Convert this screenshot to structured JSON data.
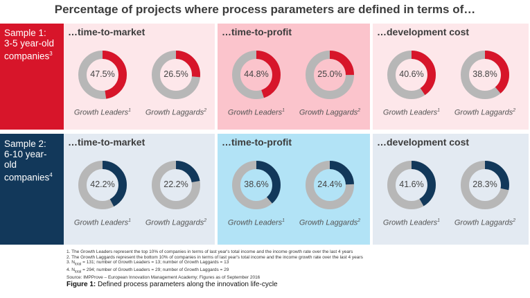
{
  "title": "Percentage of projects where process parameters are defined in terms of…",
  "colors": {
    "sample1_band": "#d7152a",
    "sample2_band": "#12385a",
    "sample1_panel_light": "#fde7ea",
    "sample1_panel_highlight": "#fbc4cc",
    "sample2_panel_light": "#e3eaf2",
    "sample2_panel_highlight": "#b2e3f6",
    "donut_track": "#b7b7b7"
  },
  "chart_data": [
    {
      "type": "donut",
      "sample": {
        "label": "Sample 1:",
        "sublabel_1": "3-5 year-old",
        "sublabel_2": "companies",
        "footnote_mark": "3"
      },
      "panels": [
        {
          "title": "…time-to-market",
          "categories": [
            "Growth Leaders",
            "Growth Laggards"
          ],
          "footnote_marks": [
            "1",
            "2"
          ],
          "values": [
            47.5,
            26.5
          ],
          "value_labels": [
            "47.5%",
            "26.5%"
          ]
        },
        {
          "title": "…time-to-profit",
          "categories": [
            "Growth Leaders",
            "Growth Laggards"
          ],
          "footnote_marks": [
            "1",
            "2"
          ],
          "values": [
            44.8,
            25.0
          ],
          "value_labels": [
            "44.8%",
            "25.0%"
          ]
        },
        {
          "title": "…development cost",
          "categories": [
            "Growth Leaders",
            "Growth Laggards"
          ],
          "footnote_marks": [
            "1",
            "2"
          ],
          "values": [
            40.6,
            38.8
          ],
          "value_labels": [
            "40.6%",
            "38.8%"
          ]
        }
      ]
    },
    {
      "type": "donut",
      "sample": {
        "label": "Sample 2:",
        "sublabel_1": "6-10 year-",
        "sublabel_2": "old",
        "sublabel_3": "companies",
        "footnote_mark": "4"
      },
      "panels": [
        {
          "title": "…time-to-market",
          "categories": [
            "Growth Leaders",
            "Growth Laggards"
          ],
          "footnote_marks": [
            "1",
            "2"
          ],
          "values": [
            42.2,
            22.2
          ],
          "value_labels": [
            "42.2%",
            "22.2%"
          ]
        },
        {
          "title": "…time-to-profit",
          "categories": [
            "Growth Leaders",
            "Growth Laggards"
          ],
          "footnote_marks": [
            "1",
            "2"
          ],
          "values": [
            38.6,
            24.4
          ],
          "value_labels": [
            "38.6%",
            "24.4%"
          ]
        },
        {
          "title": "…development cost",
          "categories": [
            "Growth Leaders",
            "Growth Laggards"
          ],
          "footnote_marks": [
            "1",
            "2"
          ],
          "values": [
            41.6,
            28.3
          ],
          "value_labels": [
            "41.6%",
            "28.3%"
          ]
        }
      ]
    }
  ],
  "footnotes": {
    "f1": "1.  The Growth Leaders represent the top 10% of companies in terms of last year's total income and the income growth rate over the last 4 years",
    "f2": "2.  The Growth Laggards represent the bottom 10% of companies in terms of last year's total income and the income growth rate over the last 4 years",
    "f3_a": "3.  N",
    "f3_sub": "total",
    "f3_b": " = 131;  number of Growth Leaders = 13;  number of Growth Laggards = 13",
    "f4_a": "4.  N",
    "f4_sub": "total",
    "f4_b": " = 294;  number of Growth Leaders = 29;  number of Growth Laggards = 29",
    "source": "Source: IMPProve – European Innovation Management Academy; Figures as of September 2016"
  },
  "caption": {
    "label": "Figure 1:",
    "text": " Defined process parameters along the innovation life-cycle"
  }
}
